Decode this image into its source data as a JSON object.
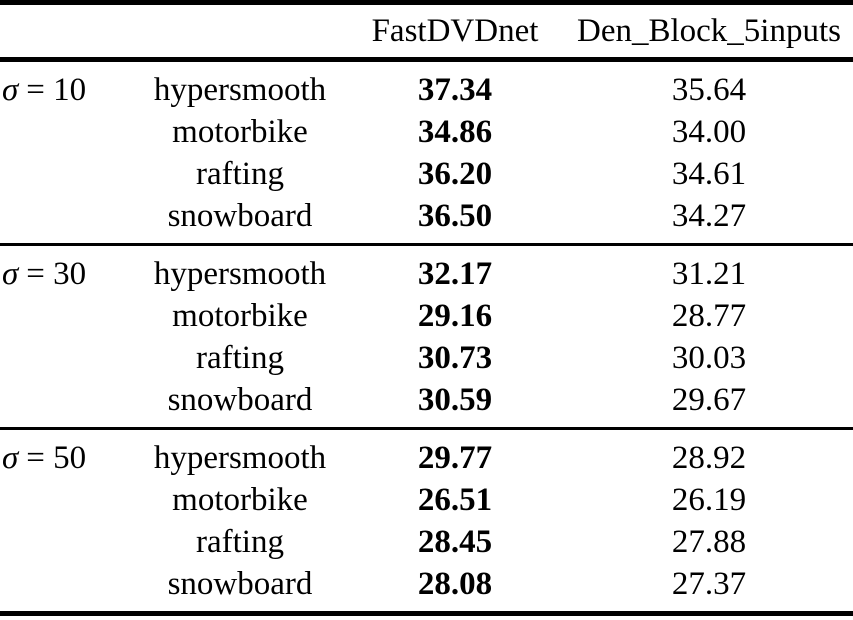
{
  "table": {
    "header": {
      "fastdvdnet": "FastDVDnet",
      "den_block_5inputs": "Den_Block_5inputs"
    },
    "sections": [
      {
        "sigma_symbol": "σ",
        "sigma_value": "= 10",
        "rows": [
          {
            "sequence": "hypersmooth",
            "fastdvdnet": "37.34",
            "den_block_5inputs": "35.64"
          },
          {
            "sequence": "motorbike",
            "fastdvdnet": "34.86",
            "den_block_5inputs": "34.00"
          },
          {
            "sequence": "rafting",
            "fastdvdnet": "36.20",
            "den_block_5inputs": "34.61"
          },
          {
            "sequence": "snowboard",
            "fastdvdnet": "36.50",
            "den_block_5inputs": "34.27"
          }
        ]
      },
      {
        "sigma_symbol": "σ",
        "sigma_value": "= 30",
        "rows": [
          {
            "sequence": "hypersmooth",
            "fastdvdnet": "32.17",
            "den_block_5inputs": "31.21"
          },
          {
            "sequence": "motorbike",
            "fastdvdnet": "29.16",
            "den_block_5inputs": "28.77"
          },
          {
            "sequence": "rafting",
            "fastdvdnet": "30.73",
            "den_block_5inputs": "30.03"
          },
          {
            "sequence": "snowboard",
            "fastdvdnet": "30.59",
            "den_block_5inputs": "29.67"
          }
        ]
      },
      {
        "sigma_symbol": "σ",
        "sigma_value": "= 50",
        "rows": [
          {
            "sequence": "hypersmooth",
            "fastdvdnet": "29.77",
            "den_block_5inputs": "28.92"
          },
          {
            "sequence": "motorbike",
            "fastdvdnet": "26.51",
            "den_block_5inputs": "26.19"
          },
          {
            "sequence": "rafting",
            "fastdvdnet": "28.45",
            "den_block_5inputs": "27.88"
          },
          {
            "sequence": "snowboard",
            "fastdvdnet": "28.08",
            "den_block_5inputs": "27.37"
          }
        ]
      }
    ],
    "colors": {
      "text": "#000000",
      "background": "#ffffff",
      "rule": "#000000"
    }
  }
}
